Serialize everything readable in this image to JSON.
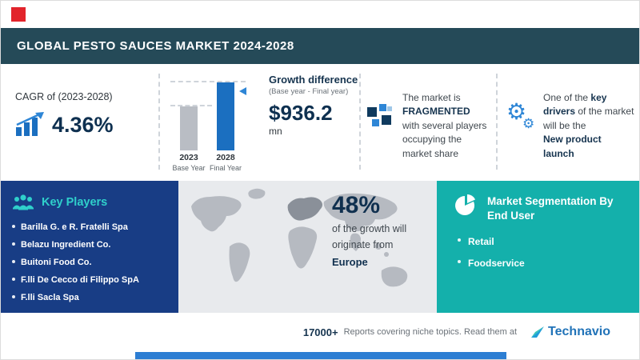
{
  "colors": {
    "header_bg": "#254a58",
    "accent_red": "#e2242b",
    "accent_blue": "#2e86d6",
    "bar_blue": "#1b6fc0",
    "bar_gray": "#b9bdc4",
    "navy": "#0e3050",
    "players_panel_bg": "#183d85",
    "teal": "#14b0ab",
    "map_panel_bg": "#e8eaed",
    "bottom_bar_blue": "#2d7ed3"
  },
  "header": {
    "title": "GLOBAL PESTO SAUCES MARKET 2024-2028"
  },
  "cagr": {
    "label": "CAGR of (2023-2028)",
    "value": "4.36%"
  },
  "growth": {
    "title": "Growth difference",
    "subtitle": "(Base year - Final year)",
    "value": "$936.2",
    "unit": "mn",
    "bars": [
      {
        "year": "2023",
        "label": "Base Year"
      },
      {
        "year": "2028",
        "label": "Final Year"
      }
    ]
  },
  "fragmented": {
    "pre": "The market is",
    "highlight": "FRAGMENTED",
    "post": "with several players occupying the market share"
  },
  "key_driver": {
    "pre": "One of the",
    "bold1": "key drivers",
    "mid": "of the market will be the",
    "bold2": "New product launch"
  },
  "key_players": {
    "title": "Key Players",
    "items": [
      "Barilla G. e R. Fratelli Spa",
      "Belazu Ingredient Co.",
      "Buitoni Food Co.",
      "F.lli De Cecco di Filippo SpA",
      "F.lli Sacla Spa"
    ]
  },
  "europe": {
    "value": "48%",
    "line1": "of the growth will",
    "line2": "originate from",
    "region": "Europe"
  },
  "segmentation": {
    "title": "Market Segmentation By End User",
    "items": [
      "Retail",
      "Foodservice"
    ]
  },
  "footer": {
    "count": "17000+",
    "text": "Reports covering niche topics. Read them at",
    "brand": "Technavio"
  },
  "chart_data": {
    "type": "bar",
    "title": "Growth difference (Base year - Final year)",
    "categories": [
      "2023 Base Year",
      "2028 Final Year"
    ],
    "values_relative_height": [
      0.65,
      1.0
    ],
    "growth_difference_value": "$936.2 mn",
    "cagr_2023_2028": "4.36%",
    "europe_growth_share": "48%",
    "legend_position": "none",
    "grid": false
  }
}
